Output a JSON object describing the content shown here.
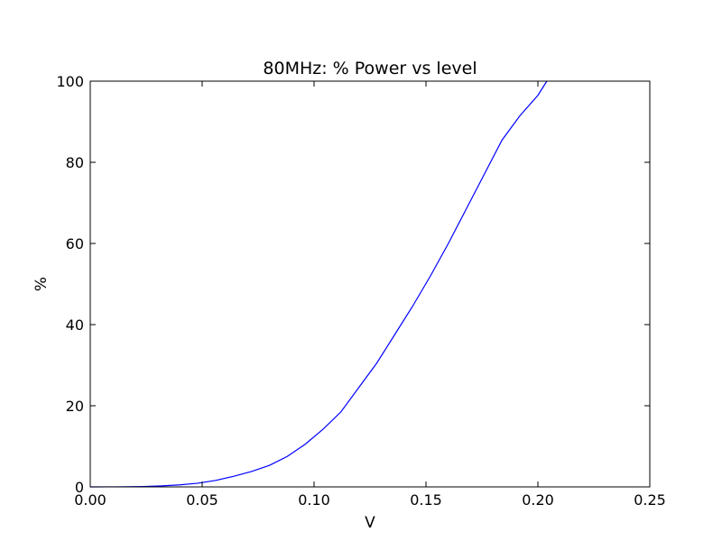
{
  "chart_data": {
    "type": "line",
    "title": "80MHz: % Power vs level",
    "xlabel": "V",
    "ylabel": "%",
    "xlim": [
      0,
      0.25
    ],
    "ylim": [
      0,
      100
    ],
    "xticks": [
      0.0,
      0.05,
      0.1,
      0.15,
      0.2,
      0.25
    ],
    "xtick_labels": [
      "0.00",
      "0.05",
      "0.10",
      "0.15",
      "0.20",
      "0.25"
    ],
    "yticks": [
      0,
      20,
      40,
      60,
      80,
      100
    ],
    "ytick_labels": [
      "0",
      "20",
      "40",
      "60",
      "80",
      "100"
    ],
    "grid": false,
    "series": [
      {
        "color": "#0000ff",
        "x": [
          0.0,
          0.008,
          0.016,
          0.024,
          0.032,
          0.04,
          0.048,
          0.056,
          0.064,
          0.072,
          0.08,
          0.088,
          0.096,
          0.104,
          0.112,
          0.12,
          0.128,
          0.136,
          0.144,
          0.152,
          0.16,
          0.168,
          0.176,
          0.184,
          0.192,
          0.2,
          0.204
        ],
        "y": [
          0.0,
          0.01,
          0.03,
          0.1,
          0.25,
          0.5,
          0.9,
          1.6,
          2.6,
          3.8,
          5.3,
          7.5,
          10.5,
          14.2,
          18.5,
          24.5,
          30.5,
          37.5,
          44.5,
          52.0,
          60.0,
          68.5,
          77.0,
          85.5,
          91.5,
          96.5,
          100.0
        ]
      }
    ]
  }
}
